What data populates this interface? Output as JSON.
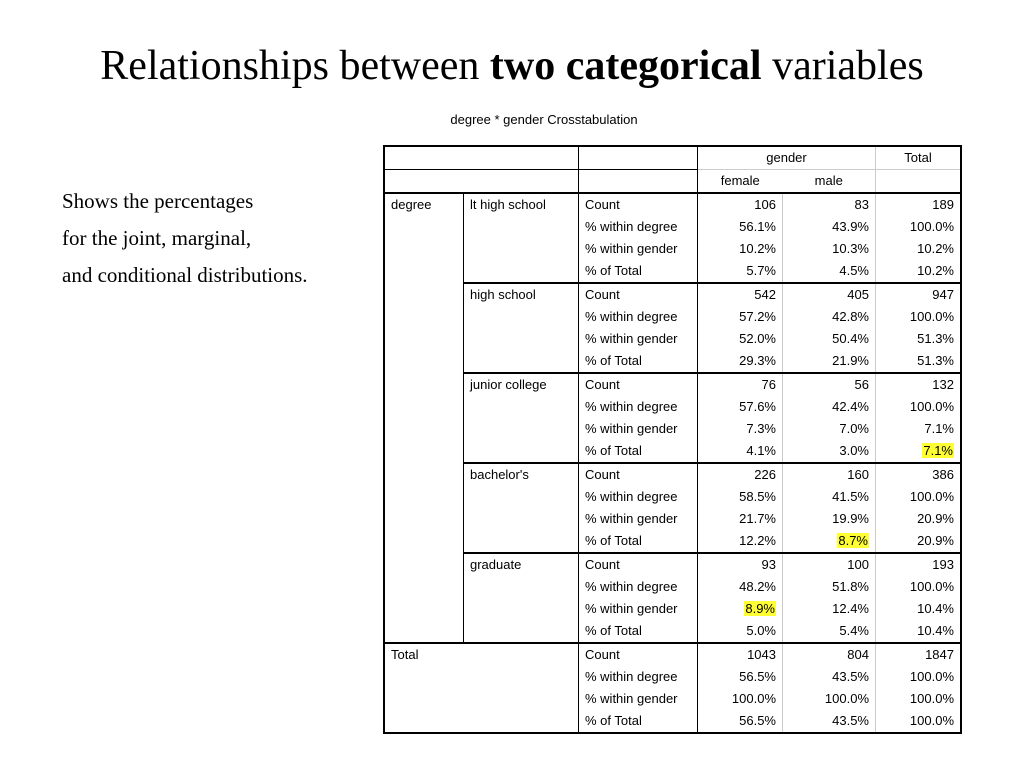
{
  "slide": {
    "title_pre": "Relationships between ",
    "title_bold": "two categorical",
    "title_post": " variables",
    "side_text": [
      "Shows the percentages",
      "for the joint, marginal,",
      "and conditional distributions."
    ]
  },
  "table": {
    "caption": "degree * gender Crosstabulation",
    "header": {
      "gender": "gender",
      "total": "Total",
      "female": "female",
      "male": "male"
    },
    "row_var": "degree",
    "stat_labels": [
      "Count",
      "% within degree",
      "% within gender",
      "% of Total"
    ],
    "groups": [
      {
        "label": "lt high school",
        "rows": [
          [
            "106",
            "83",
            "189"
          ],
          [
            "56.1%",
            "43.9%",
            "100.0%"
          ],
          [
            "10.2%",
            "10.3%",
            "10.2%"
          ],
          [
            "5.7%",
            "4.5%",
            "10.2%"
          ]
        ]
      },
      {
        "label": "high school",
        "rows": [
          [
            "542",
            "405",
            "947"
          ],
          [
            "57.2%",
            "42.8%",
            "100.0%"
          ],
          [
            "52.0%",
            "50.4%",
            "51.3%"
          ],
          [
            "29.3%",
            "21.9%",
            "51.3%"
          ]
        ]
      },
      {
        "label": "junior college",
        "rows": [
          [
            "76",
            "56",
            "132"
          ],
          [
            "57.6%",
            "42.4%",
            "100.0%"
          ],
          [
            "7.3%",
            "7.0%",
            "7.1%"
          ],
          [
            "4.1%",
            "3.0%",
            "7.1%"
          ]
        ]
      },
      {
        "label": "bachelor's",
        "rows": [
          [
            "226",
            "160",
            "386"
          ],
          [
            "58.5%",
            "41.5%",
            "100.0%"
          ],
          [
            "21.7%",
            "19.9%",
            "20.9%"
          ],
          [
            "12.2%",
            "8.7%",
            "20.9%"
          ]
        ]
      },
      {
        "label": "graduate",
        "rows": [
          [
            "93",
            "100",
            "193"
          ],
          [
            "48.2%",
            "51.8%",
            "100.0%"
          ],
          [
            "8.9%",
            "12.4%",
            "10.4%"
          ],
          [
            "5.0%",
            "5.4%",
            "10.4%"
          ]
        ]
      }
    ],
    "total": {
      "label": "Total",
      "rows": [
        [
          "1043",
          "804",
          "1847"
        ],
        [
          "56.5%",
          "43.5%",
          "100.0%"
        ],
        [
          "100.0%",
          "100.0%",
          "100.0%"
        ],
        [
          "56.5%",
          "43.5%",
          "100.0%"
        ]
      ]
    },
    "highlights": [
      {
        "group": 2,
        "row": 3,
        "col": 2
      },
      {
        "group": 3,
        "row": 3,
        "col": 1
      },
      {
        "group": 4,
        "row": 2,
        "col": 0
      }
    ],
    "highlight_color": "#ffff33"
  }
}
